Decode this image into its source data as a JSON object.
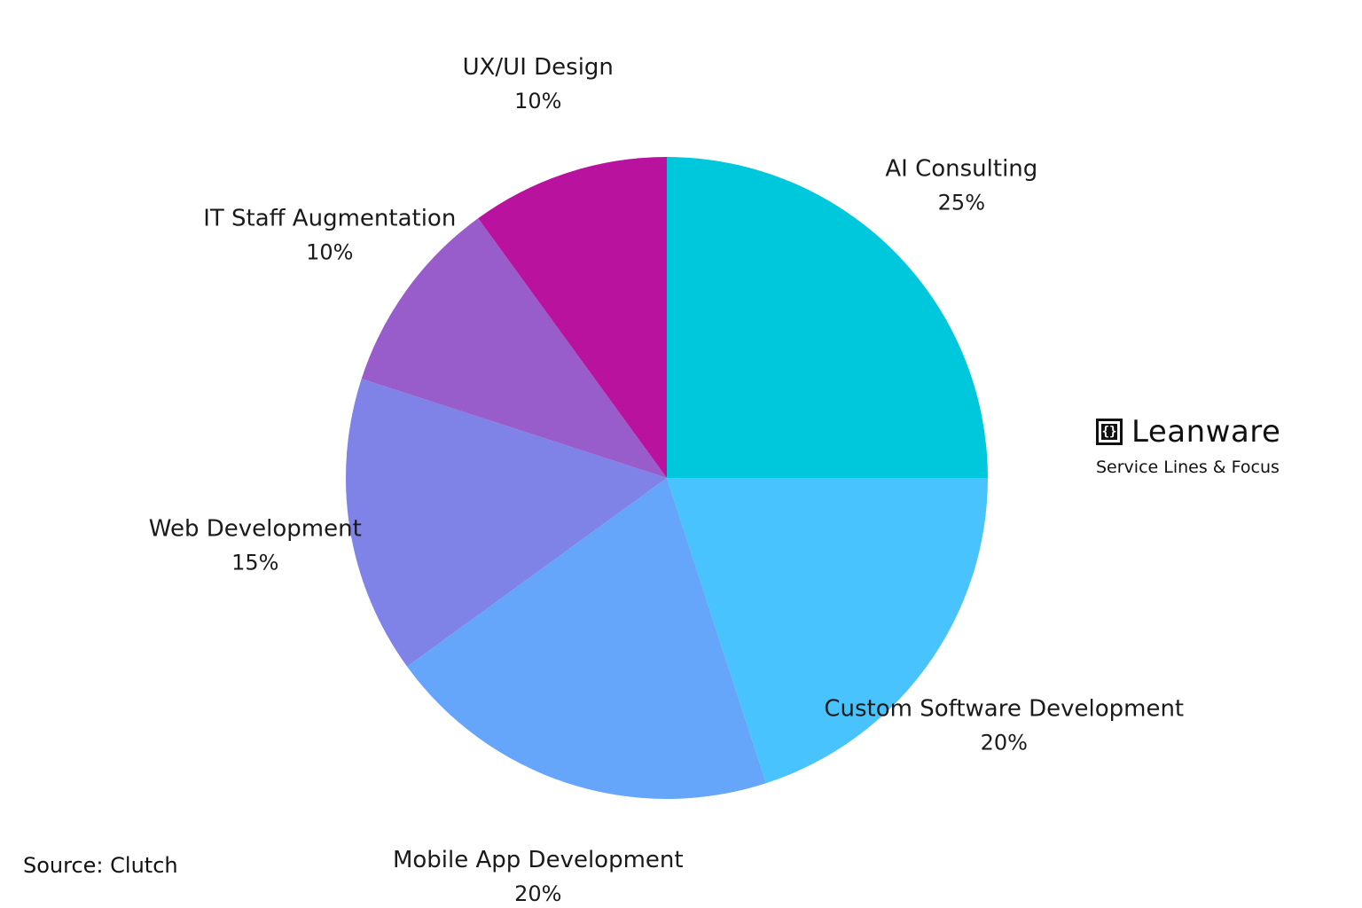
{
  "chart_data": {
    "type": "pie",
    "slices": [
      {
        "label": "AI Consulting",
        "value": 25,
        "value_label": "25%",
        "color": "#00c8dc"
      },
      {
        "label": "Custom Software Development",
        "value": 20,
        "value_label": "20%",
        "color": "#48c3fd"
      },
      {
        "label": "Mobile App Development",
        "value": 20,
        "value_label": "20%",
        "color": "#65a6fa"
      },
      {
        "label": "Web Development",
        "value": 15,
        "value_label": "15%",
        "color": "#7f82e6"
      },
      {
        "label": "IT Staff Augmentation",
        "value": 10,
        "value_label": "10%",
        "color": "#985ccb"
      },
      {
        "label": "UX/UI Design",
        "value": 10,
        "value_label": "10%",
        "color": "#b8129f"
      }
    ],
    "start_angle": "12 o'clock",
    "direction": "clockwise",
    "legend": "none (labels outside slices)"
  },
  "brand": {
    "logo_icon": "curly-brackets-box-icon",
    "name": "Leanware",
    "subtitle": "Service Lines & Focus"
  },
  "source": "Source: Clutch"
}
